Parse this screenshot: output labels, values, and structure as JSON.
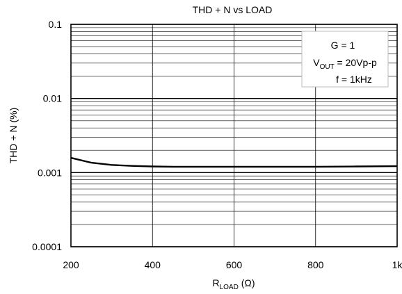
{
  "chart_data": {
    "type": "line",
    "title": "THD + N vs LOAD",
    "ylabel": "THD + N (%)",
    "xlabel": {
      "main": "R",
      "sub": "LOAD",
      "unit": " (Ω)"
    },
    "x_scale": "linear",
    "y_scale": "log",
    "xlim": [
      200,
      1000
    ],
    "ylim": [
      0.0001,
      0.1
    ],
    "x_ticks": [
      {
        "value": 200,
        "label": "200"
      },
      {
        "value": 400,
        "label": "400"
      },
      {
        "value": 600,
        "label": "600"
      },
      {
        "value": 800,
        "label": "800"
      },
      {
        "value": 1000,
        "label": "1k"
      }
    ],
    "y_ticks": [
      {
        "value": 0.1,
        "label": "0.1"
      },
      {
        "value": 0.01,
        "label": "0.01"
      },
      {
        "value": 0.001,
        "label": "0.001"
      },
      {
        "value": 0.0001,
        "label": "0.0001"
      }
    ],
    "grid": true,
    "legend_position": "top-right",
    "annotation": {
      "line1": "G = 1",
      "line2_main": "V",
      "line2_sub": "OUT",
      "line2_rest": " = 20Vp-p",
      "line3": "f = 1kHz"
    },
    "series": [
      {
        "x": [
          200,
          250,
          300,
          350,
          400,
          450,
          500,
          600,
          700,
          800,
          900,
          1000
        ],
        "y": [
          0.00158,
          0.00136,
          0.00127,
          0.00123,
          0.00121,
          0.0012,
          0.0012,
          0.0012,
          0.0012,
          0.0012,
          0.00121,
          0.00122
        ]
      }
    ]
  }
}
